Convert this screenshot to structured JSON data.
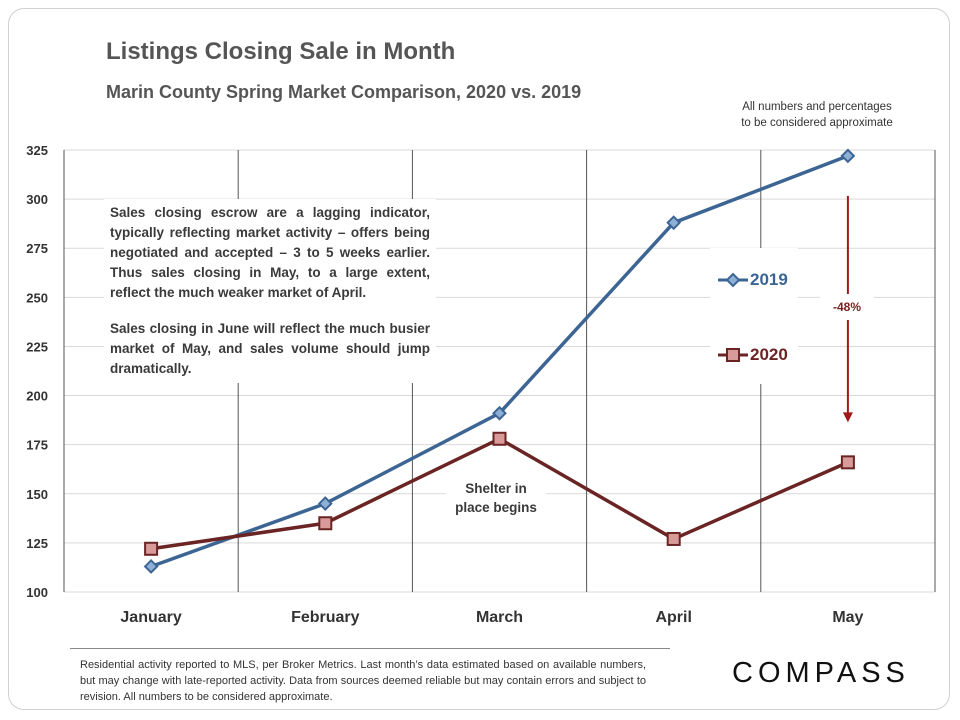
{
  "title": "Listings Closing Sale in Month",
  "subtitle": "Marin County Spring Market Comparison,  2020 vs. 2019",
  "disclaimer_top": [
    "All numbers and percentages",
    "to be considered approximate"
  ],
  "note": {
    "paragraph1": "Sales closing escrow are a lagging indicator, typically reflecting market activity – offers being negotiated and accepted – 3 to 5 weeks earlier.  Thus sales closing in May, to a large extent, reflect the much weaker market of April.",
    "paragraph2": "Sales closing in June will reflect the much busier market of May, and sales volume should jump dramatically."
  },
  "annotation_shelter": [
    "Shelter in",
    "place begins"
  ],
  "annotation_change": "-48%",
  "footer_note": "Residential activity reported to MLS, per Broker Metrics. Last month’s data estimated based on available numbers, but may change with late-reported activity. Data from sources deemed reliable but may contain errors and subject to revision. All numbers to be considered approximate.",
  "logo": "COMPASS",
  "colors": {
    "series_2019": "#3d6594",
    "series_2020": "#6b2424",
    "arrow": "#a01818",
    "grid": "#d9d9d9"
  },
  "chart_data": {
    "type": "line",
    "title": "Listings Closing Sale in Month",
    "subtitle": "Marin County Spring Market Comparison,  2020 vs. 2019",
    "categories": [
      "January",
      "February",
      "March",
      "April",
      "May"
    ],
    "series": [
      {
        "name": "2019",
        "values": [
          113,
          145,
          191,
          288,
          322
        ],
        "color": "#3d6594",
        "marker": "diamond"
      },
      {
        "name": "2020",
        "values": [
          122,
          135,
          178,
          127,
          166
        ],
        "color": "#6b2424",
        "marker": "square"
      }
    ],
    "ylim": [
      100,
      325
    ],
    "yticks": [
      100,
      125,
      150,
      175,
      200,
      225,
      250,
      275,
      300,
      325
    ],
    "xlabel": "",
    "ylabel": "",
    "grid": true,
    "legend_position": "right"
  }
}
